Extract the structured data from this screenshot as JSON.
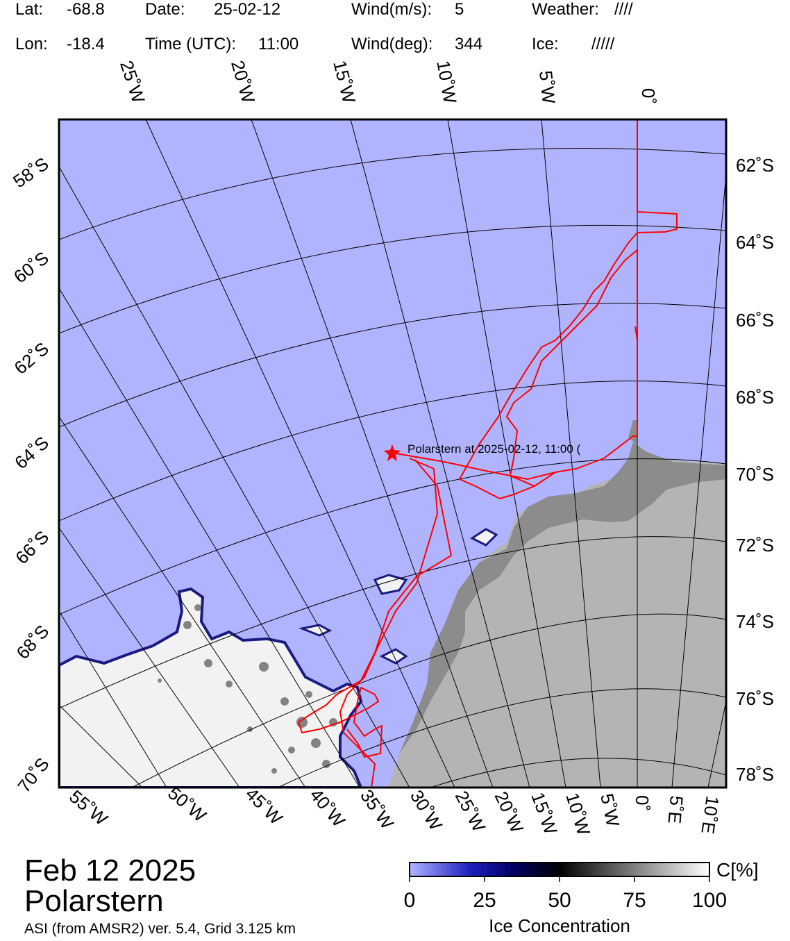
{
  "header": {
    "lat_label": "Lat:",
    "lat_value": "-68.8",
    "lon_label": "Lon:",
    "lon_value": "-18.4",
    "date_label": "Date:",
    "date_value": "25-02-12",
    "time_label": "Time (UTC):",
    "time_value": "11:00",
    "wind_speed_label": "Wind(m/s):",
    "wind_speed_value": "5",
    "wind_dir_label": "Wind(deg):",
    "wind_dir_value": "344",
    "weather_label": "Weather:",
    "weather_value": "////",
    "ice_label": "Ice:",
    "ice_value": "/////"
  },
  "map": {
    "ship_label": "Polarstern at 2025-02-12, 11:00 (",
    "top_lon_labels": [
      "25˚W",
      "20˚W",
      "15˚W",
      "10˚W",
      "5˚W",
      "0˚"
    ],
    "left_lat_labels": [
      "58˚S",
      "60˚S",
      "62˚S",
      "64˚S",
      "66˚S",
      "68˚S",
      "70˚S"
    ],
    "right_lat_labels": [
      "62˚S",
      "64˚S",
      "66˚S",
      "68˚S",
      "70˚S",
      "72˚S",
      "74˚S",
      "76˚S",
      "78˚S"
    ],
    "bottom_lon_labels": [
      "55˚W",
      "50˚W",
      "45˚W",
      "40˚W",
      "35˚W",
      "30˚W",
      "25˚W",
      "20˚W",
      "15˚W",
      "10˚W",
      "5˚W",
      "0˚",
      "5˚E",
      "10˚E"
    ],
    "colors": {
      "open_water": "#b0b4ff",
      "ice_shelf": "#8c8c8c",
      "land": "#b4b4b4",
      "track": "#ff0000",
      "sea_ice": "#f2f2f2"
    }
  },
  "footer": {
    "date": "Feb 12 2025",
    "ship": "Polarstern",
    "source": "ASI (from AMSR2) ver. 5.4,  Grid 3.125 km"
  },
  "colorbar": {
    "unit": "C[%]",
    "ticks": [
      "0",
      "25",
      "50",
      "75",
      "100"
    ],
    "title": "Ice Concentration"
  }
}
